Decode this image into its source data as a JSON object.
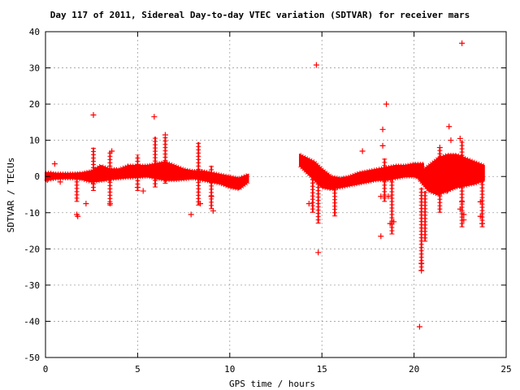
{
  "chart_data": {
    "type": "scatter",
    "title": "Day 117 of 2011, Sidereal Day-to-day VTEC variation (SDTVAR) for receiver mars",
    "xlabel": "GPS time / hours",
    "ylabel": "SDTVAR / TECUs",
    "xlim": [
      0,
      25
    ],
    "ylim": [
      -50,
      40
    ],
    "xticks": [
      0,
      5,
      10,
      15,
      20,
      25
    ],
    "yticks": [
      -50,
      -40,
      -30,
      -20,
      -10,
      0,
      10,
      20,
      30,
      40
    ],
    "grid": true,
    "marker": "plus",
    "color": "#ff0000",
    "bands": [
      {
        "x": [
          0.0,
          0.3,
          0.6,
          1.0,
          1.5,
          2.0,
          2.5,
          3.0,
          3.5,
          4.0,
          4.5,
          5.0,
          5.5,
          6.0,
          6.5,
          7.0,
          7.5,
          8.0,
          8.5,
          9.0,
          9.5,
          10.0,
          10.5,
          11.0
        ],
        "lower": [
          -1.0,
          -0.8,
          -0.6,
          -0.5,
          -0.5,
          -0.8,
          -1.5,
          -1.2,
          -0.8,
          -0.5,
          -0.3,
          -0.2,
          0.0,
          -0.5,
          -1.0,
          -1.0,
          -0.8,
          -0.5,
          -1.0,
          -1.5,
          -2.0,
          -3.0,
          -3.5,
          -1.5
        ],
        "upper": [
          1.0,
          1.0,
          0.8,
          0.8,
          0.8,
          1.0,
          1.5,
          3.0,
          2.0,
          2.0,
          3.0,
          3.0,
          3.0,
          3.5,
          4.0,
          3.0,
          2.0,
          1.5,
          1.5,
          1.0,
          0.5,
          0.0,
          -0.5,
          0.5
        ]
      },
      {
        "x": [
          13.8,
          14.2,
          14.6,
          15.0,
          15.5,
          16.0,
          16.5,
          17.0,
          17.5,
          18.0,
          18.5,
          19.0,
          19.5,
          20.0,
          20.5
        ],
        "lower": [
          3.0,
          1.0,
          -1.0,
          -3.0,
          -3.5,
          -3.0,
          -2.5,
          -2.0,
          -1.5,
          -1.0,
          -1.0,
          -0.5,
          0.0,
          0.0,
          -1.0
        ],
        "upper": [
          6.0,
          5.0,
          4.0,
          2.0,
          0.0,
          -0.5,
          0.0,
          1.0,
          1.5,
          2.0,
          2.5,
          3.0,
          3.0,
          3.5,
          3.5
        ]
      },
      {
        "x": [
          20.3,
          20.8,
          21.3,
          21.8,
          22.3,
          22.8,
          23.3,
          23.8
        ],
        "lower": [
          -1.0,
          -4.0,
          -5.0,
          -4.0,
          -3.0,
          -2.5,
          -2.0,
          -1.0
        ],
        "upper": [
          1.0,
          3.0,
          5.0,
          6.0,
          6.0,
          5.0,
          4.0,
          3.0
        ]
      }
    ],
    "spikes": [
      {
        "x": 1.7,
        "y1": -7.0,
        "y2": 0.0
      },
      {
        "x": 2.6,
        "y1": -4.0,
        "y2": 8.0
      },
      {
        "x": 3.5,
        "y1": -8.0,
        "y2": 7.0
      },
      {
        "x": 5.0,
        "y1": -4.0,
        "y2": 6.0
      },
      {
        "x": 5.95,
        "y1": -3.0,
        "y2": 11.0
      },
      {
        "x": 6.5,
        "y1": -2.0,
        "y2": 11.0
      },
      {
        "x": 8.3,
        "y1": -8.0,
        "y2": 9.5
      },
      {
        "x": 9.0,
        "y1": -9.0,
        "y2": 3.0
      },
      {
        "x": 14.5,
        "y1": -10.0,
        "y2": 3.0
      },
      {
        "x": 14.8,
        "y1": -13.0,
        "y2": 2.0
      },
      {
        "x": 15.7,
        "y1": -11.0,
        "y2": -2.0
      },
      {
        "x": 18.4,
        "y1": -7.0,
        "y2": 5.0
      },
      {
        "x": 18.8,
        "y1": -16.0,
        "y2": 0.0
      },
      {
        "x": 20.4,
        "y1": -26.0,
        "y2": -3.0
      },
      {
        "x": 20.6,
        "y1": -18.0,
        "y2": -4.0
      },
      {
        "x": 21.4,
        "y1": -10.0,
        "y2": 8.0
      },
      {
        "x": 22.6,
        "y1": -14.0,
        "y2": 10.0
      },
      {
        "x": 23.7,
        "y1": -14.0,
        "y2": 2.0
      }
    ],
    "outliers": [
      {
        "x": 0.1,
        "y": -1.0
      },
      {
        "x": 0.5,
        "y": 3.5
      },
      {
        "x": 0.8,
        "y": -1.5
      },
      {
        "x": 1.7,
        "y": -10.5
      },
      {
        "x": 1.75,
        "y": -11.0
      },
      {
        "x": 2.2,
        "y": -7.5
      },
      {
        "x": 2.6,
        "y": 17.0
      },
      {
        "x": 3.5,
        "y": -7.5
      },
      {
        "x": 3.6,
        "y": 7.0
      },
      {
        "x": 5.0,
        "y": -3.0
      },
      {
        "x": 5.3,
        "y": -4.0
      },
      {
        "x": 5.9,
        "y": 16.5
      },
      {
        "x": 6.5,
        "y": 11.5
      },
      {
        "x": 7.9,
        "y": -10.5
      },
      {
        "x": 8.4,
        "y": -7.5
      },
      {
        "x": 9.0,
        "y": -5.5
      },
      {
        "x": 9.1,
        "y": -9.5
      },
      {
        "x": 14.7,
        "y": 30.8
      },
      {
        "x": 14.8,
        "y": -21.0
      },
      {
        "x": 14.3,
        "y": -7.5
      },
      {
        "x": 17.2,
        "y": 7.0
      },
      {
        "x": 18.2,
        "y": -16.5
      },
      {
        "x": 18.5,
        "y": 20.0
      },
      {
        "x": 18.3,
        "y": 13.0
      },
      {
        "x": 18.3,
        "y": 8.5
      },
      {
        "x": 18.7,
        "y": -13.0
      },
      {
        "x": 18.9,
        "y": -12.5
      },
      {
        "x": 18.2,
        "y": -5.5
      },
      {
        "x": 18.6,
        "y": -5.5
      },
      {
        "x": 20.3,
        "y": -41.5
      },
      {
        "x": 20.4,
        "y": -26.0
      },
      {
        "x": 20.4,
        "y": -24.0
      },
      {
        "x": 21.4,
        "y": 8.0
      },
      {
        "x": 21.8,
        "y": -4.0
      },
      {
        "x": 21.9,
        "y": 13.8
      },
      {
        "x": 22.0,
        "y": 10.0
      },
      {
        "x": 22.5,
        "y": 10.5
      },
      {
        "x": 22.6,
        "y": 36.8
      },
      {
        "x": 22.7,
        "y": -10.5
      },
      {
        "x": 22.7,
        "y": -12.0
      },
      {
        "x": 22.5,
        "y": -9.0
      },
      {
        "x": 22.6,
        "y": -7.0
      },
      {
        "x": 23.6,
        "y": -11.0
      },
      {
        "x": 23.7,
        "y": -13.0
      },
      {
        "x": 23.6,
        "y": -7.0
      }
    ]
  }
}
